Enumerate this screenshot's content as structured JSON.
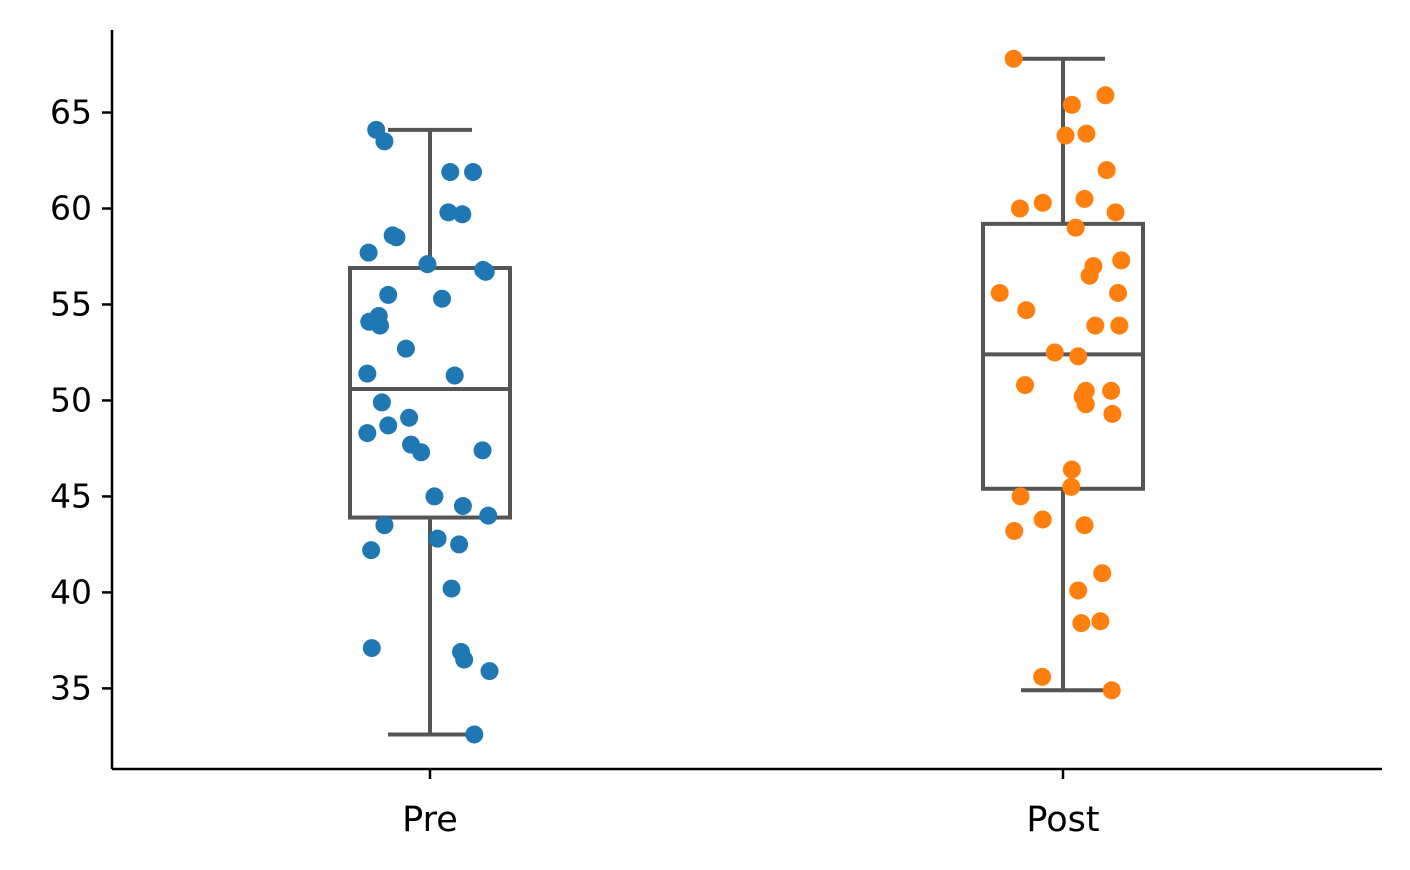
{
  "chart_data": {
    "type": "box",
    "title": "",
    "xlabel": "",
    "ylabel": "",
    "categories": [
      "Pre",
      "Post"
    ],
    "ylim": [
      30.8,
      69.3
    ],
    "yticks": [
      35,
      40,
      45,
      50,
      55,
      60,
      65
    ],
    "grid": false,
    "box_color": "#555555",
    "series": [
      {
        "name": "Pre",
        "color": "#1f77b4",
        "box": {
          "whisker_low": 32.6,
          "q1": 43.9,
          "median": 50.6,
          "q3": 56.9,
          "whisker_high": 64.1
        },
        "points": [
          [
            -0.085,
            64.1
          ],
          [
            -0.072,
            63.5
          ],
          [
            0.032,
            61.9
          ],
          [
            0.068,
            61.9
          ],
          [
            0.029,
            59.8
          ],
          [
            0.051,
            59.7
          ],
          [
            -0.059,
            58.6
          ],
          [
            -0.053,
            58.5
          ],
          [
            -0.097,
            57.7
          ],
          [
            -0.004,
            57.1
          ],
          [
            0.084,
            56.8
          ],
          [
            0.088,
            56.7
          ],
          [
            -0.066,
            55.5
          ],
          [
            0.019,
            55.3
          ],
          [
            -0.081,
            54.4
          ],
          [
            -0.096,
            54.1
          ],
          [
            -0.079,
            53.9
          ],
          [
            -0.038,
            52.7
          ],
          [
            -0.099,
            51.4
          ],
          [
            0.039,
            51.3
          ],
          [
            -0.076,
            49.9
          ],
          [
            -0.033,
            49.1
          ],
          [
            -0.066,
            48.7
          ],
          [
            -0.099,
            48.3
          ],
          [
            -0.03,
            47.7
          ],
          [
            -0.014,
            47.3
          ],
          [
            0.083,
            47.4
          ],
          [
            0.007,
            45.0
          ],
          [
            0.052,
            44.5
          ],
          [
            0.092,
            44.0
          ],
          [
            -0.072,
            43.5
          ],
          [
            0.012,
            42.8
          ],
          [
            0.046,
            42.5
          ],
          [
            -0.093,
            42.2
          ],
          [
            0.034,
            40.2
          ],
          [
            -0.092,
            37.1
          ],
          [
            0.049,
            36.9
          ],
          [
            0.054,
            36.5
          ],
          [
            0.094,
            35.9
          ],
          [
            0.07,
            32.6
          ]
        ]
      },
      {
        "name": "Post",
        "color": "#ff7f0e",
        "box": {
          "whisker_low": 34.9,
          "q1": 45.4,
          "median": 52.4,
          "q3": 59.2,
          "whisker_high": 67.8
        },
        "points": [
          [
            -0.078,
            67.8
          ],
          [
            0.067,
            65.9
          ],
          [
            0.014,
            65.4
          ],
          [
            0.037,
            63.9
          ],
          [
            0.004,
            63.8
          ],
          [
            0.069,
            62.0
          ],
          [
            -0.068,
            60.0
          ],
          [
            -0.032,
            60.3
          ],
          [
            0.034,
            60.5
          ],
          [
            0.083,
            59.8
          ],
          [
            0.02,
            59.0
          ],
          [
            0.092,
            57.3
          ],
          [
            0.048,
            57.0
          ],
          [
            0.042,
            56.5
          ],
          [
            -0.1,
            55.6
          ],
          [
            0.087,
            55.6
          ],
          [
            -0.058,
            54.7
          ],
          [
            0.051,
            53.9
          ],
          [
            0.089,
            53.9
          ],
          [
            -0.013,
            52.5
          ],
          [
            0.024,
            52.3
          ],
          [
            -0.06,
            50.8
          ],
          [
            0.036,
            50.5
          ],
          [
            0.076,
            50.5
          ],
          [
            0.031,
            50.2
          ],
          [
            0.036,
            49.8
          ],
          [
            0.078,
            49.3
          ],
          [
            0.014,
            46.4
          ],
          [
            0.013,
            45.5
          ],
          [
            -0.067,
            45.0
          ],
          [
            -0.032,
            43.8
          ],
          [
            0.034,
            43.5
          ],
          [
            -0.077,
            43.2
          ],
          [
            0.062,
            41.0
          ],
          [
            0.024,
            40.1
          ],
          [
            0.029,
            38.4
          ],
          [
            0.059,
            38.5
          ],
          [
            -0.033,
            35.6
          ],
          [
            0.077,
            34.9
          ]
        ]
      }
    ]
  }
}
